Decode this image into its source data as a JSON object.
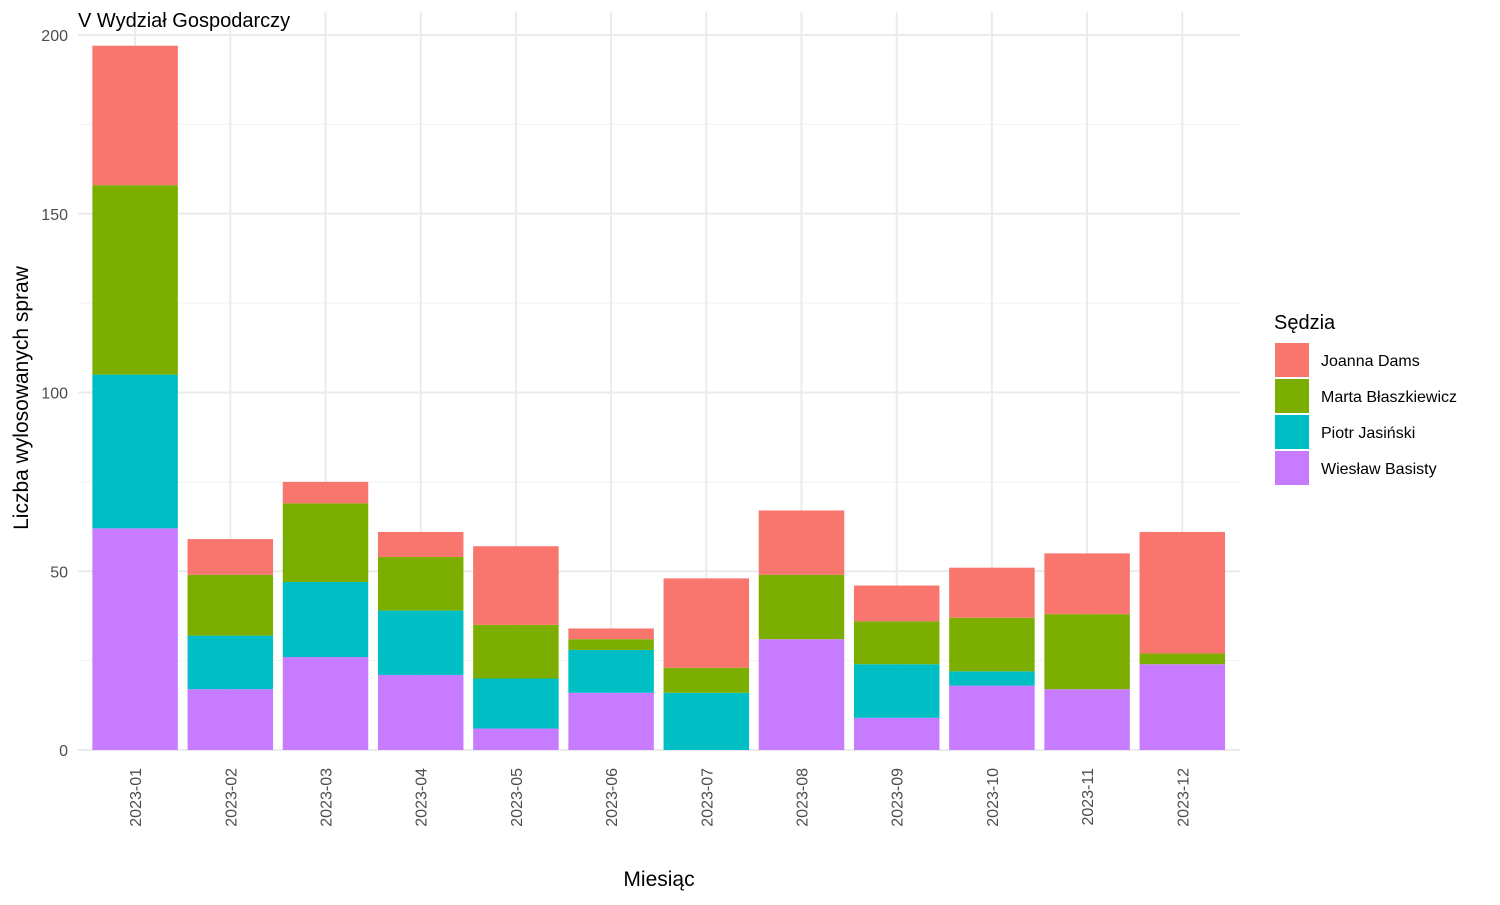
{
  "chart_data": {
    "type": "bar",
    "stacked": true,
    "title": "V Wydział Gospodarczy",
    "xlabel": "Miesiąc",
    "ylabel": "Liczba wylosowanych spraw",
    "ylim": [
      0,
      200
    ],
    "yticks": [
      0,
      50,
      100,
      150,
      200
    ],
    "grid": true,
    "legend_title": "Sędzia",
    "legend_position": "right",
    "categories": [
      "2023-01",
      "2023-02",
      "2023-03",
      "2023-04",
      "2023-05",
      "2023-06",
      "2023-07",
      "2023-08",
      "2023-09",
      "2023-10",
      "2023-11",
      "2023-12"
    ],
    "series": [
      {
        "name": "Joanna Dams",
        "color": "#F8766D",
        "values": [
          39,
          10,
          6,
          7,
          22,
          3,
          25,
          18,
          10,
          14,
          17,
          34
        ]
      },
      {
        "name": "Marta Błaszkiewicz",
        "color": "#7CAE00",
        "values": [
          53,
          17,
          22,
          15,
          15,
          3,
          7,
          18,
          12,
          15,
          21,
          3
        ]
      },
      {
        "name": "Piotr Jasiński",
        "color": "#00BFC4",
        "values": [
          43,
          15,
          21,
          18,
          14,
          12,
          16,
          0,
          15,
          4,
          0,
          0
        ]
      },
      {
        "name": "Wiesław Basisty",
        "color": "#C77CFF",
        "values": [
          62,
          17,
          26,
          21,
          6,
          16,
          0,
          31,
          9,
          18,
          17,
          24
        ]
      }
    ]
  }
}
